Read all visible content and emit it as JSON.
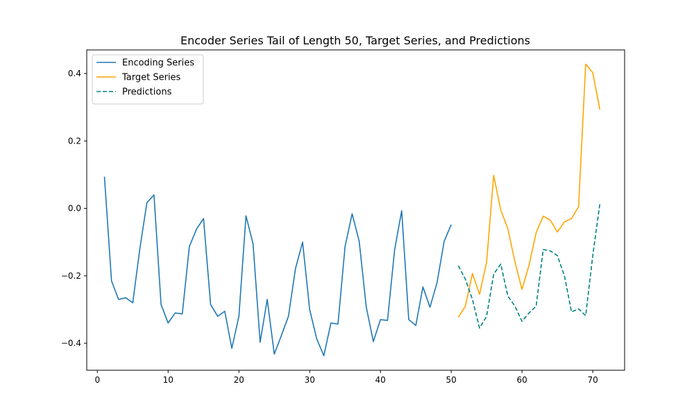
{
  "chart_data": {
    "type": "line",
    "title": "Encoder Series Tail of Length 50, Target Series, and Predictions",
    "xlabel": "",
    "ylabel": "",
    "xlim": [
      -1.5,
      74.5
    ],
    "ylim": [
      -0.48,
      0.47
    ],
    "xticks": [
      0,
      10,
      20,
      30,
      40,
      50,
      60,
      70
    ],
    "yticks": [
      -0.4,
      -0.2,
      0.0,
      0.2,
      0.4
    ],
    "grid": false,
    "legend": "top-left",
    "series": [
      {
        "name": "Encoding Series",
        "color": "#1f77b4",
        "style": "solid",
        "x": [
          1,
          2,
          3,
          4,
          5,
          6,
          7,
          8,
          9,
          10,
          11,
          12,
          13,
          14,
          15,
          16,
          17,
          18,
          19,
          20,
          21,
          22,
          23,
          24,
          25,
          26,
          27,
          28,
          29,
          30,
          31,
          32,
          33,
          34,
          35,
          36,
          37,
          38,
          39,
          40,
          41,
          42,
          43,
          44,
          45,
          46,
          47,
          48,
          49,
          50
        ],
        "y": [
          0.094,
          -0.215,
          -0.27,
          -0.265,
          -0.28,
          -0.12,
          0.017,
          0.04,
          -0.285,
          -0.34,
          -0.31,
          -0.313,
          -0.113,
          -0.062,
          -0.03,
          -0.285,
          -0.32,
          -0.305,
          -0.415,
          -0.32,
          -0.022,
          -0.105,
          -0.397,
          -0.27,
          -0.432,
          -0.377,
          -0.32,
          -0.178,
          -0.1,
          -0.3,
          -0.387,
          -0.437,
          -0.34,
          -0.343,
          -0.113,
          -0.016,
          -0.098,
          -0.293,
          -0.395,
          -0.33,
          -0.332,
          -0.123,
          -0.007,
          -0.33,
          -0.347,
          -0.233,
          -0.293,
          -0.22,
          -0.098,
          -0.048
        ]
      },
      {
        "name": "Target Series",
        "color": "#ffa500",
        "style": "solid",
        "x": [
          51,
          52,
          53,
          54,
          55,
          56,
          57,
          58,
          59,
          60,
          61,
          62,
          63,
          64,
          65,
          66,
          67,
          68,
          69,
          70,
          71
        ],
        "y": [
          -0.323,
          -0.29,
          -0.193,
          -0.255,
          -0.16,
          0.098,
          -0.005,
          -0.06,
          -0.158,
          -0.24,
          -0.168,
          -0.072,
          -0.023,
          -0.035,
          -0.07,
          -0.04,
          -0.03,
          0.005,
          0.428,
          0.403,
          0.293
        ]
      },
      {
        "name": "Predictions",
        "color": "#008080",
        "style": "dashed",
        "x": [
          51,
          52,
          53,
          54,
          55,
          56,
          57,
          58,
          59,
          60,
          61,
          62,
          63,
          64,
          65,
          66,
          67,
          68,
          69,
          70,
          71
        ],
        "y": [
          -0.17,
          -0.21,
          -0.27,
          -0.355,
          -0.32,
          -0.195,
          -0.165,
          -0.26,
          -0.29,
          -0.335,
          -0.31,
          -0.29,
          -0.122,
          -0.126,
          -0.14,
          -0.2,
          -0.307,
          -0.298,
          -0.318,
          -0.14,
          0.013
        ]
      }
    ]
  }
}
